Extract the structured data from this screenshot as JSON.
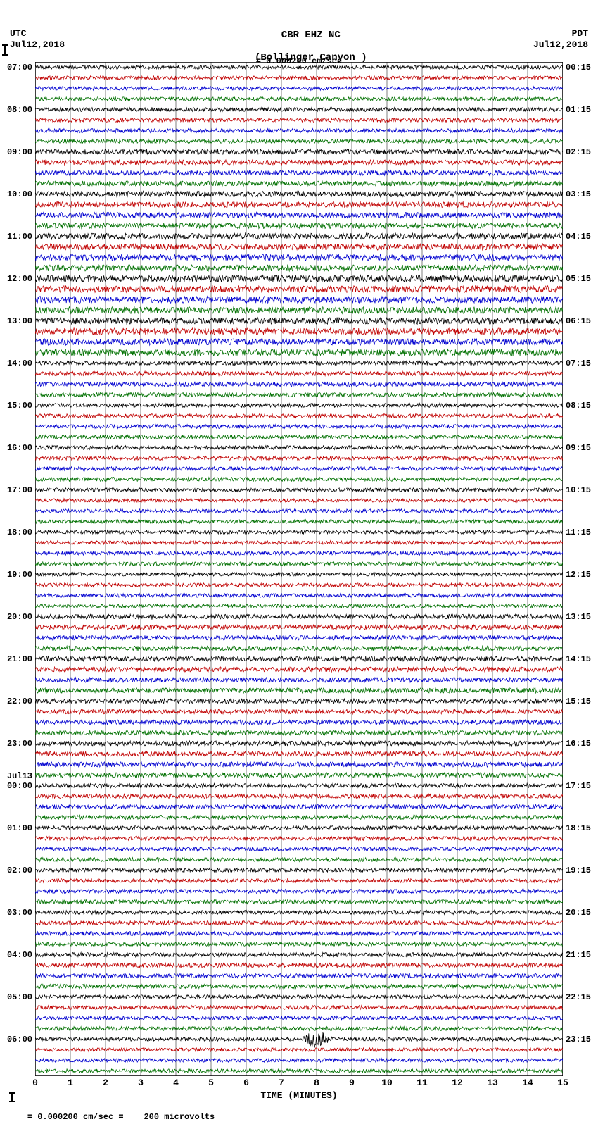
{
  "header": {
    "station": "CBR EHZ NC",
    "location": "(Bollinger Canyon )",
    "scale_legend": "= 0.000200 cm/sec"
  },
  "tz_left": "UTC",
  "tz_right": "PDT",
  "date_left": "Jul12,2018",
  "date_right": "Jul12,2018",
  "midnight_left": "Jul13",
  "x_axis": {
    "label": "TIME (MINUTES)",
    "ticks": [
      0,
      1,
      2,
      3,
      4,
      5,
      6,
      7,
      8,
      9,
      10,
      11,
      12,
      13,
      14,
      15
    ],
    "xlim": [
      0,
      15
    ]
  },
  "trace_colors": [
    "#000000",
    "#c00000",
    "#0000d0",
    "#007000"
  ],
  "grid_color": "#808080",
  "background_color": "#ffffff",
  "noise_base_amplitude": 2.2,
  "samples_per_trace": 900,
  "hours_utc": [
    {
      "h": "07",
      "label": "07:00",
      "right": "00:15"
    },
    {
      "h": "08",
      "label": "08:00",
      "right": "01:15"
    },
    {
      "h": "09",
      "label": "09:00",
      "right": "02:15"
    },
    {
      "h": "10",
      "label": "10:00",
      "right": "03:15"
    },
    {
      "h": "11",
      "label": "11:00",
      "right": "04:15"
    },
    {
      "h": "12",
      "label": "12:00",
      "right": "05:15"
    },
    {
      "h": "13",
      "label": "13:00",
      "right": "06:15"
    },
    {
      "h": "14",
      "label": "14:00",
      "right": "07:15"
    },
    {
      "h": "15",
      "label": "15:00",
      "right": "08:15"
    },
    {
      "h": "16",
      "label": "16:00",
      "right": "09:15"
    },
    {
      "h": "17",
      "label": "17:00",
      "right": "10:15"
    },
    {
      "h": "18",
      "label": "18:00",
      "right": "11:15"
    },
    {
      "h": "19",
      "label": "19:00",
      "right": "12:15"
    },
    {
      "h": "20",
      "label": "20:00",
      "right": "13:15"
    },
    {
      "h": "21",
      "label": "21:00",
      "right": "14:15"
    },
    {
      "h": "22",
      "label": "22:00",
      "right": "15:15"
    },
    {
      "h": "23",
      "label": "23:00",
      "right": "16:15"
    },
    {
      "h": "00",
      "label": "00:00",
      "right": "17:15",
      "midnight": true
    },
    {
      "h": "01",
      "label": "01:00",
      "right": "18:15"
    },
    {
      "h": "02",
      "label": "02:00",
      "right": "19:15"
    },
    {
      "h": "03",
      "label": "03:00",
      "right": "20:15"
    },
    {
      "h": "04",
      "label": "04:00",
      "right": "21:15"
    },
    {
      "h": "05",
      "label": "05:00",
      "right": "22:15"
    },
    {
      "h": "06",
      "label": "06:00",
      "right": "23:15"
    }
  ],
  "amplitude_profile": [
    1.2,
    1.3,
    1.6,
    1.8,
    2.0,
    2.2,
    2.1,
    1.4,
    1.3,
    1.3,
    1.2,
    1.2,
    1.2,
    1.5,
    1.6,
    1.5,
    1.6,
    1.4,
    1.3,
    1.3,
    1.3,
    1.4,
    1.3,
    1.2
  ],
  "event": {
    "row_index": 92,
    "x_minute": 8.0,
    "peak_amplitude": 14,
    "width_minutes": 0.6
  },
  "footer_note": "= 0.000200 cm/sec =    200 microvolts"
}
